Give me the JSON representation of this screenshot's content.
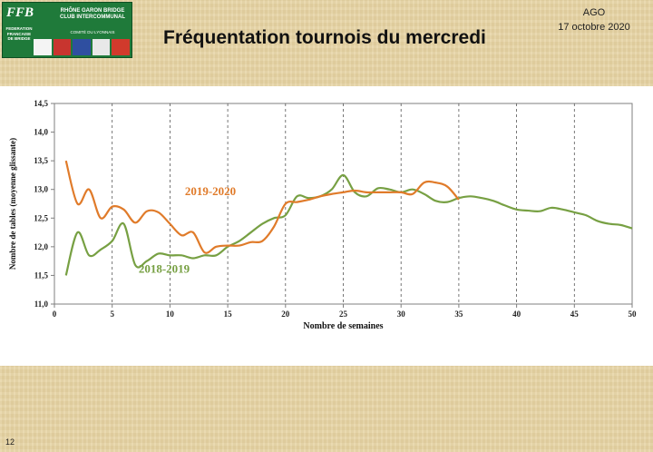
{
  "header": {
    "title": "Fréquentation tournois du mercredi",
    "meeting": "AGO",
    "date": "17 octobre 2020"
  },
  "logo": {
    "ffb": "FFB",
    "federation": "FEDERATION FRANCAISE DE BRIDGE",
    "club": "RHÔNE GARON BRIDGE CLUB INTERCOMMUNAL",
    "committee": "COMITÉ DU LYONNAIS"
  },
  "page_number": "12",
  "colors": {
    "series_2019_2020": "#e07b2a",
    "series_2018_2019": "#77a043"
  },
  "chart_data": {
    "type": "line",
    "title": "",
    "xlabel": "Nombre de semaines",
    "ylabel": "Nombre de tables (moyenne glissante)",
    "xlim": [
      0,
      50
    ],
    "ylim": [
      11.0,
      14.5
    ],
    "xticks": [
      0,
      5,
      10,
      15,
      20,
      25,
      30,
      35,
      40,
      45,
      50
    ],
    "yticks": [
      "11,0",
      "11,5",
      "12,0",
      "12,5",
      "13,0",
      "13,5",
      "14,0",
      "14,5"
    ],
    "grid": "vertical dashed",
    "series": [
      {
        "name": "2019-2020",
        "color": "#e07b2a",
        "x": [
          1,
          2,
          3,
          4,
          5,
          6,
          7,
          8,
          9,
          10,
          11,
          12,
          13,
          14,
          15,
          16,
          17,
          18,
          19,
          20,
          21,
          22,
          23,
          24,
          25,
          26,
          27,
          28,
          29,
          30,
          31,
          32,
          33,
          34,
          35
        ],
        "y": [
          13.5,
          12.75,
          13.0,
          12.5,
          12.7,
          12.65,
          12.42,
          12.62,
          12.6,
          12.4,
          12.2,
          12.25,
          11.9,
          12.0,
          12.02,
          12.02,
          12.08,
          12.1,
          12.35,
          12.75,
          12.78,
          12.82,
          12.88,
          12.92,
          12.95,
          12.98,
          12.95,
          12.95,
          12.95,
          12.95,
          12.92,
          13.12,
          13.12,
          13.05,
          12.82
        ]
      },
      {
        "name": "2018-2019",
        "color": "#77a043",
        "x": [
          1,
          2,
          3,
          4,
          5,
          6,
          7,
          8,
          9,
          10,
          11,
          12,
          13,
          14,
          15,
          16,
          17,
          18,
          19,
          20,
          21,
          22,
          23,
          24,
          25,
          26,
          27,
          28,
          29,
          30,
          31,
          32,
          33,
          34,
          35,
          36,
          37,
          38,
          39,
          40,
          41,
          42,
          43,
          44,
          45,
          46,
          47,
          48,
          49,
          50
        ],
        "y": [
          11.5,
          12.25,
          11.85,
          11.95,
          12.1,
          12.4,
          11.68,
          11.75,
          11.88,
          11.85,
          11.85,
          11.8,
          11.85,
          11.85,
          12.0,
          12.1,
          12.25,
          12.4,
          12.5,
          12.55,
          12.88,
          12.85,
          12.88,
          13.0,
          13.25,
          12.95,
          12.88,
          13.02,
          13.0,
          12.95,
          13.0,
          12.92,
          12.8,
          12.78,
          12.85,
          12.88,
          12.85,
          12.8,
          12.72,
          12.65,
          12.63,
          12.62,
          12.68,
          12.65,
          12.6,
          12.55,
          12.45,
          12.4,
          12.38,
          12.32
        ]
      }
    ],
    "annotations": [
      {
        "text": "2019-2020",
        "series": 0,
        "x": 13.5,
        "y": 12.9
      },
      {
        "text": "2018-2019",
        "series": 1,
        "x": 9.5,
        "y": 11.55
      }
    ]
  }
}
